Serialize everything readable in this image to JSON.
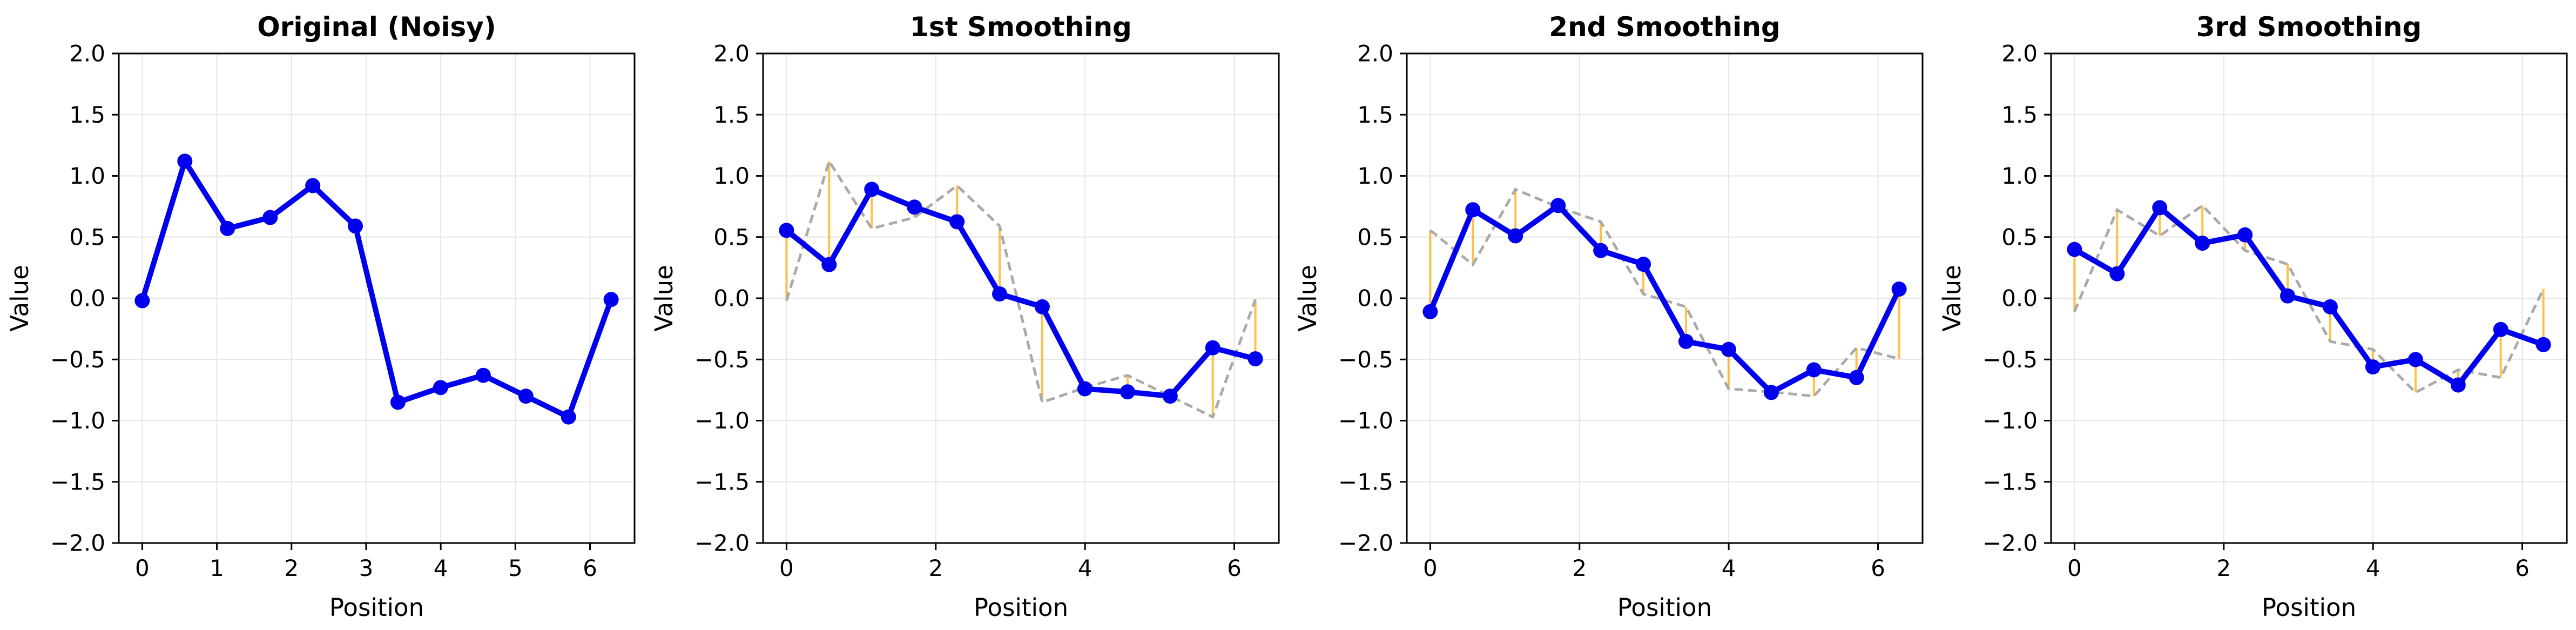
{
  "figure": {
    "background": "#ffffff",
    "n_subplots": 4
  },
  "style": {
    "main_line_color": "#0000ee",
    "marker_color": "#0000ee",
    "previous_line_color": "#aaaaaa",
    "connector_color": "#ffa500",
    "connector_opacity": 0.7,
    "grid_color": "#e6e6e6",
    "frame_color": "#000000",
    "text_color": "#000000"
  },
  "chart_data": [
    {
      "type": "line",
      "title": "Original (Noisy)",
      "xlabel": "Position",
      "ylabel": "Value",
      "xlim": [
        -0.314,
        6.597
      ],
      "ylim": [
        -2.0,
        2.0
      ],
      "x_ticks": [
        0,
        1,
        2,
        3,
        4,
        5,
        6
      ],
      "y_ticks": [
        -2.0,
        -1.5,
        -1.0,
        -0.5,
        0.0,
        0.5,
        1.0,
        1.5,
        2.0
      ],
      "grid": true,
      "legend": "none",
      "x": [
        0.0,
        0.571,
        1.142,
        1.714,
        2.285,
        2.856,
        3.427,
        3.998,
        4.57,
        5.141,
        5.712,
        6.283
      ],
      "series": [
        {
          "name": "noisy-signal",
          "role": "main",
          "values": [
            -0.02,
            1.12,
            0.57,
            0.66,
            0.92,
            0.59,
            -0.85,
            -0.73,
            -0.63,
            -0.8,
            -0.97,
            -0.01
          ]
        }
      ]
    },
    {
      "type": "line",
      "title": "1st Smoothing",
      "xlabel": "Position",
      "ylabel": "Value",
      "xlim": [
        -0.314,
        6.597
      ],
      "ylim": [
        -2.0,
        2.0
      ],
      "x_ticks": [
        0,
        2,
        4,
        6
      ],
      "y_ticks": [
        -2.0,
        -1.5,
        -1.0,
        -0.5,
        0.0,
        0.5,
        1.0,
        1.5,
        2.0
      ],
      "grid": true,
      "legend": "none",
      "x": [
        0.0,
        0.571,
        1.142,
        1.714,
        2.285,
        2.856,
        3.427,
        3.998,
        4.57,
        5.141,
        5.712,
        6.283
      ],
      "series": [
        {
          "name": "smoothed-signal",
          "role": "main",
          "values": [
            0.555,
            0.275,
            0.89,
            0.745,
            0.625,
            0.035,
            -0.07,
            -0.74,
            -0.765,
            -0.8,
            -0.405,
            -0.495
          ]
        },
        {
          "name": "previous-iteration",
          "role": "previous",
          "values": [
            -0.02,
            1.12,
            0.57,
            0.66,
            0.92,
            0.59,
            -0.85,
            -0.73,
            -0.63,
            -0.8,
            -0.97,
            -0.01
          ]
        },
        {
          "name": "difference-connectors",
          "role": "connectors"
        }
      ]
    },
    {
      "type": "line",
      "title": "2nd Smoothing",
      "xlabel": "Position",
      "ylabel": "Value",
      "xlim": [
        -0.314,
        6.597
      ],
      "ylim": [
        -2.0,
        2.0
      ],
      "x_ticks": [
        0,
        2,
        4,
        6
      ],
      "y_ticks": [
        -2.0,
        -1.5,
        -1.0,
        -0.5,
        0.0,
        0.5,
        1.0,
        1.5,
        2.0
      ],
      "grid": true,
      "legend": "none",
      "x": [
        0.0,
        0.571,
        1.142,
        1.714,
        2.285,
        2.856,
        3.427,
        3.998,
        4.57,
        5.141,
        5.712,
        6.283
      ],
      "series": [
        {
          "name": "smoothed-signal",
          "role": "main",
          "values": [
            -0.11,
            0.723,
            0.51,
            0.758,
            0.39,
            0.278,
            -0.353,
            -0.418,
            -0.77,
            -0.585,
            -0.648,
            0.075
          ]
        },
        {
          "name": "previous-iteration",
          "role": "previous",
          "values": [
            0.555,
            0.275,
            0.89,
            0.745,
            0.625,
            0.035,
            -0.07,
            -0.74,
            -0.765,
            -0.8,
            -0.405,
            -0.495
          ]
        },
        {
          "name": "difference-connectors",
          "role": "connectors"
        }
      ]
    },
    {
      "type": "line",
      "title": "3rd Smoothing",
      "xlabel": "Position",
      "ylabel": "Value",
      "xlim": [
        -0.314,
        6.597
      ],
      "ylim": [
        -2.0,
        2.0
      ],
      "x_ticks": [
        0,
        2,
        4,
        6
      ],
      "y_ticks": [
        -2.0,
        -1.5,
        -1.0,
        -0.5,
        0.0,
        0.5,
        1.0,
        1.5,
        2.0
      ],
      "grid": true,
      "legend": "none",
      "x": [
        0.0,
        0.571,
        1.142,
        1.714,
        2.285,
        2.856,
        3.427,
        3.998,
        4.57,
        5.141,
        5.712,
        6.283
      ],
      "series": [
        {
          "name": "smoothed-signal",
          "role": "main",
          "values": [
            0.399,
            0.2,
            0.74,
            0.45,
            0.518,
            0.019,
            -0.07,
            -0.561,
            -0.501,
            -0.709,
            -0.255,
            -0.379
          ]
        },
        {
          "name": "previous-iteration",
          "role": "previous",
          "values": [
            -0.11,
            0.723,
            0.51,
            0.758,
            0.39,
            0.278,
            -0.353,
            -0.418,
            -0.77,
            -0.585,
            -0.648,
            0.075
          ]
        },
        {
          "name": "difference-connectors",
          "role": "connectors"
        }
      ]
    }
  ]
}
